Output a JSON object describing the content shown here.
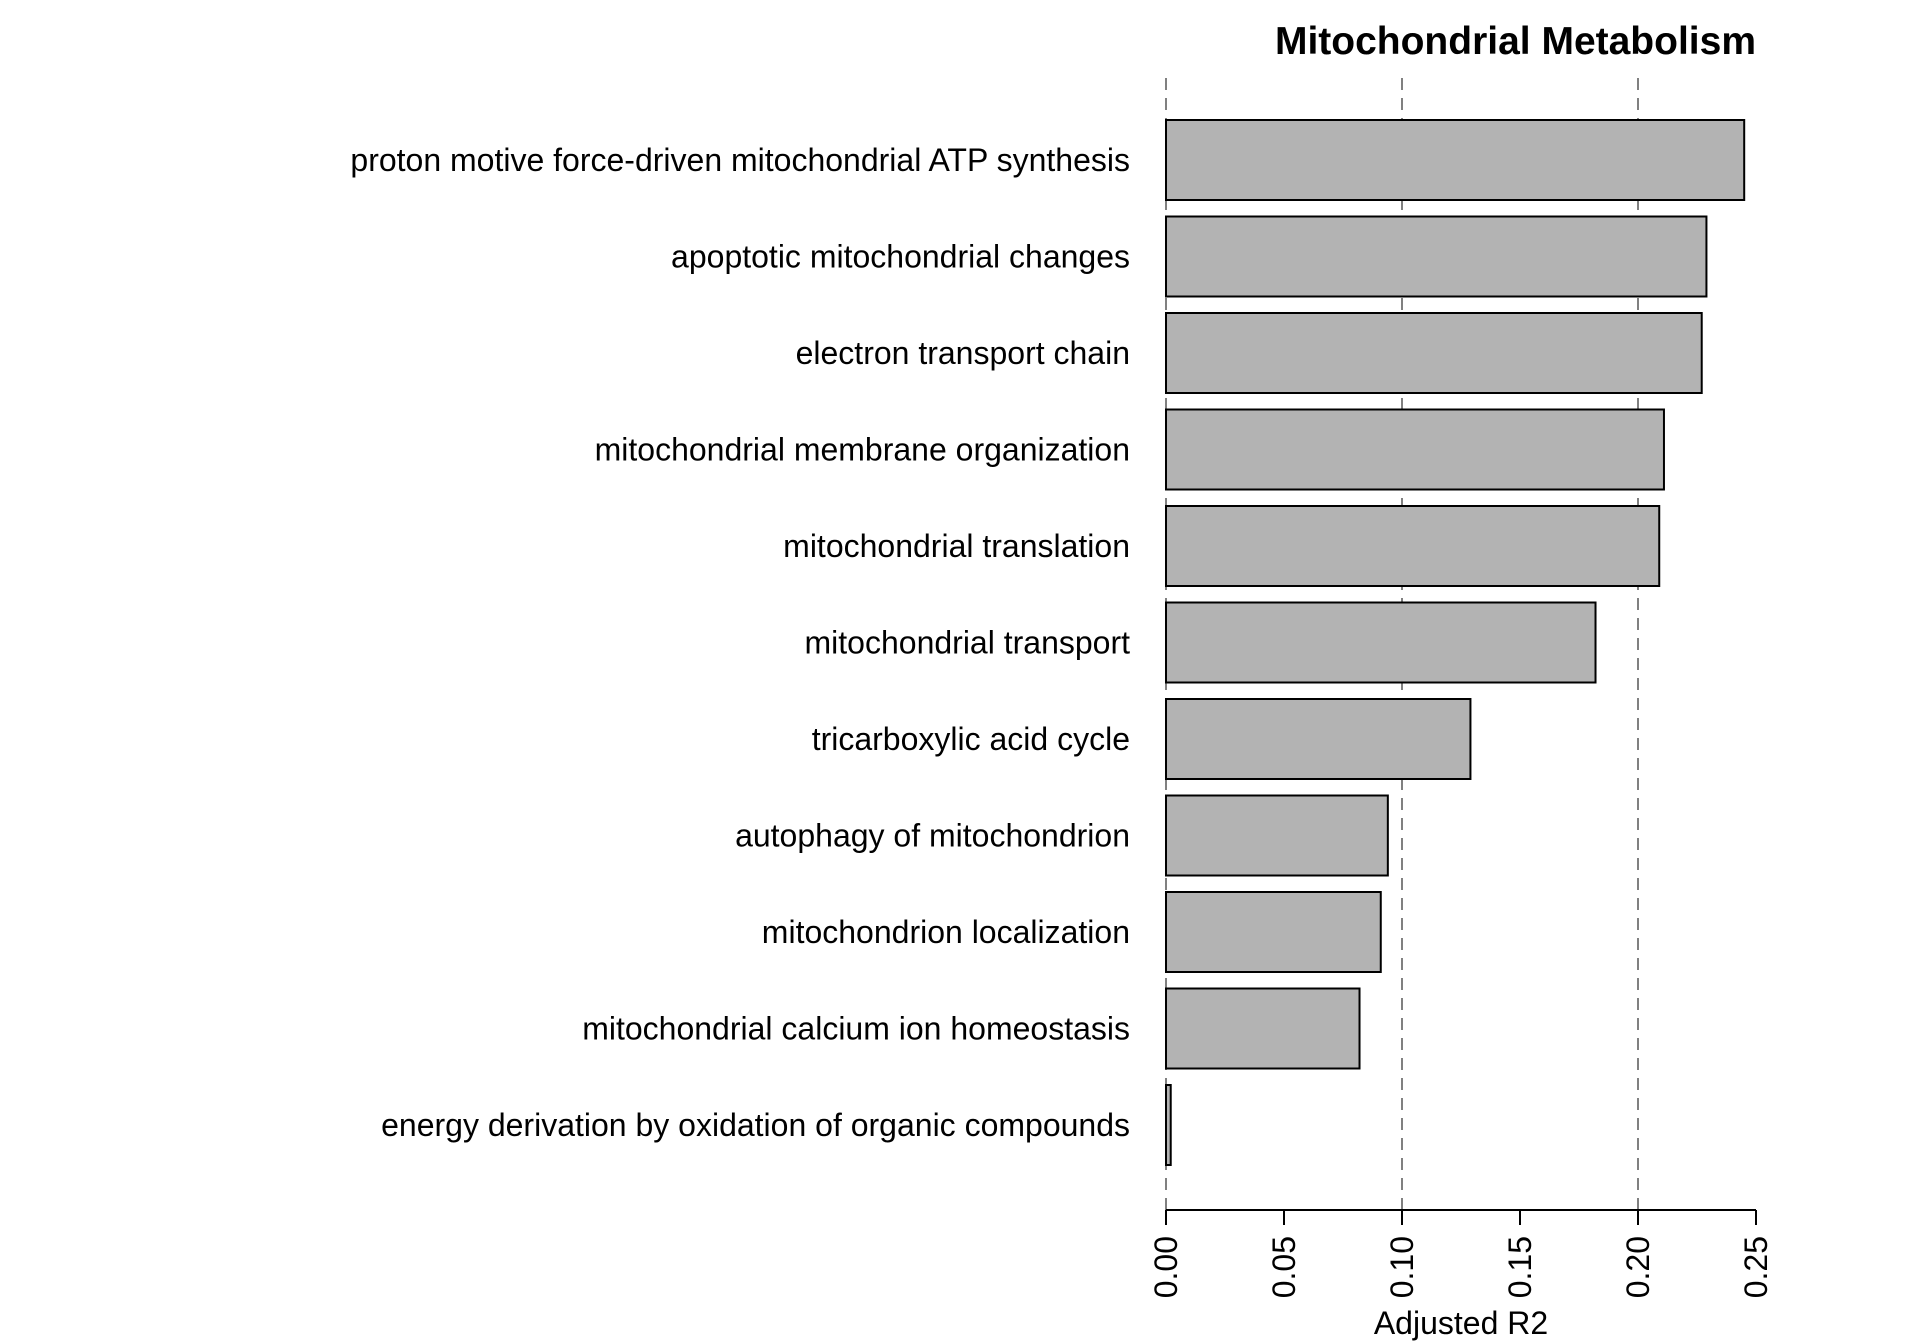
{
  "chart_data": {
    "type": "bar",
    "orientation": "horizontal",
    "title": "Mitochondrial Metabolism",
    "xlabel": "Adjusted R2",
    "ylabel": "",
    "categories": [
      "proton motive force-driven mitochondrial ATP synthesis",
      "apoptotic mitochondrial changes",
      "electron transport chain",
      "mitochondrial membrane organization",
      "mitochondrial translation",
      "mitochondrial transport",
      "tricarboxylic acid cycle",
      "autophagy of mitochondrion",
      "mitochondrion localization",
      "mitochondrial calcium ion homeostasis",
      "energy derivation by oxidation of organic compounds"
    ],
    "values": [
      0.245,
      0.229,
      0.227,
      0.211,
      0.209,
      0.182,
      0.129,
      0.094,
      0.091,
      0.082,
      0.002
    ],
    "xlim": [
      0,
      0.25
    ],
    "xticks": [
      0.0,
      0.05,
      0.1,
      0.15,
      0.2,
      0.25
    ],
    "xtick_labels": [
      "0.00",
      "0.05",
      "0.10",
      "0.15",
      "0.20",
      "0.25"
    ],
    "reference_lines": [
      0.0,
      0.1,
      0.2
    ],
    "grid": false,
    "colors": {
      "bar_fill": "#b3b3b3",
      "bar_stroke": "#000000",
      "reference_line": "#808080"
    }
  }
}
